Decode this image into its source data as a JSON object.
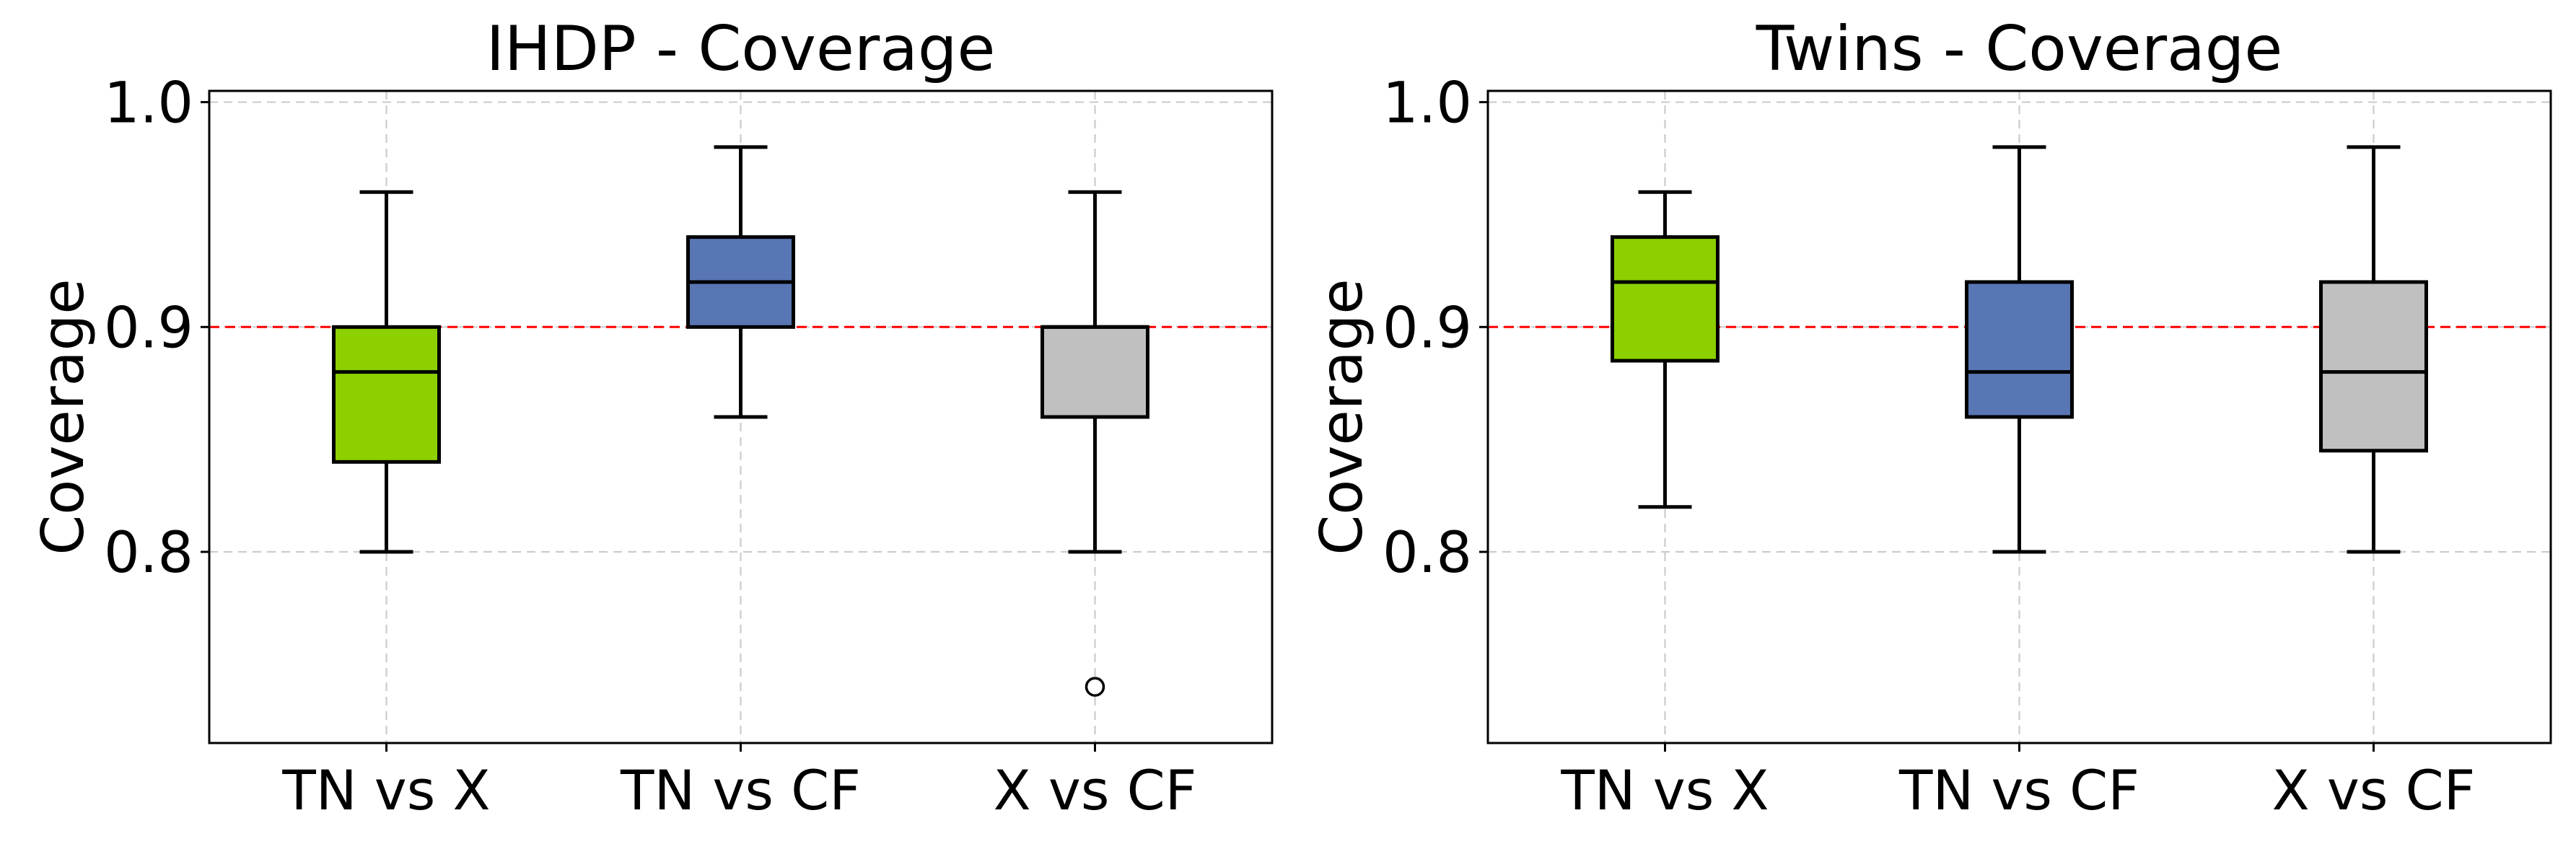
{
  "chart_data": [
    {
      "type": "box",
      "title": "IHDP - Coverage",
      "xlabel": "",
      "ylabel": "Coverage",
      "ylim": [
        0.715,
        1.005
      ],
      "yticks": [
        0.8,
        0.9,
        1.0
      ],
      "ytick_labels": [
        "0.8",
        "0.9",
        "1.0"
      ],
      "reference_line": 0.9,
      "reference_color": "#ff0000",
      "grid": true,
      "categories": [
        "TN vs X",
        "TN vs CF",
        "X vs CF"
      ],
      "boxes": [
        {
          "label": "TN vs X",
          "color": "#8cd000",
          "whisker_low": 0.8,
          "q1": 0.84,
          "median": 0.88,
          "q3": 0.9,
          "whisker_high": 0.96,
          "outliers": []
        },
        {
          "label": "TN vs CF",
          "color": "#5875b4",
          "whisker_low": 0.86,
          "q1": 0.9,
          "median": 0.92,
          "q3": 0.94,
          "whisker_high": 0.98,
          "outliers": []
        },
        {
          "label": "X vs CF",
          "color": "#c0c0c0",
          "whisker_low": 0.8,
          "q1": 0.86,
          "median": 0.9,
          "q3": 0.9,
          "whisker_high": 0.96,
          "outliers": [
            0.74
          ]
        }
      ]
    },
    {
      "type": "box",
      "title": "Twins - Coverage",
      "xlabel": "",
      "ylabel": "Coverage",
      "ylim": [
        0.715,
        1.005
      ],
      "yticks": [
        0.8,
        0.9,
        1.0
      ],
      "ytick_labels": [
        "0.8",
        "0.9",
        "1.0"
      ],
      "reference_line": 0.9,
      "reference_color": "#ff0000",
      "grid": true,
      "categories": [
        "TN vs X",
        "TN vs CF",
        "X vs CF"
      ],
      "boxes": [
        {
          "label": "TN vs X",
          "color": "#8cd000",
          "whisker_low": 0.82,
          "q1": 0.885,
          "median": 0.92,
          "q3": 0.94,
          "whisker_high": 0.96,
          "outliers": []
        },
        {
          "label": "TN vs CF",
          "color": "#5875b4",
          "whisker_low": 0.8,
          "q1": 0.86,
          "median": 0.88,
          "q3": 0.92,
          "whisker_high": 0.98,
          "outliers": []
        },
        {
          "label": "X vs CF",
          "color": "#c0c0c0",
          "whisker_low": 0.8,
          "q1": 0.845,
          "median": 0.88,
          "q3": 0.92,
          "whisker_high": 0.98,
          "outliers": []
        }
      ]
    }
  ]
}
